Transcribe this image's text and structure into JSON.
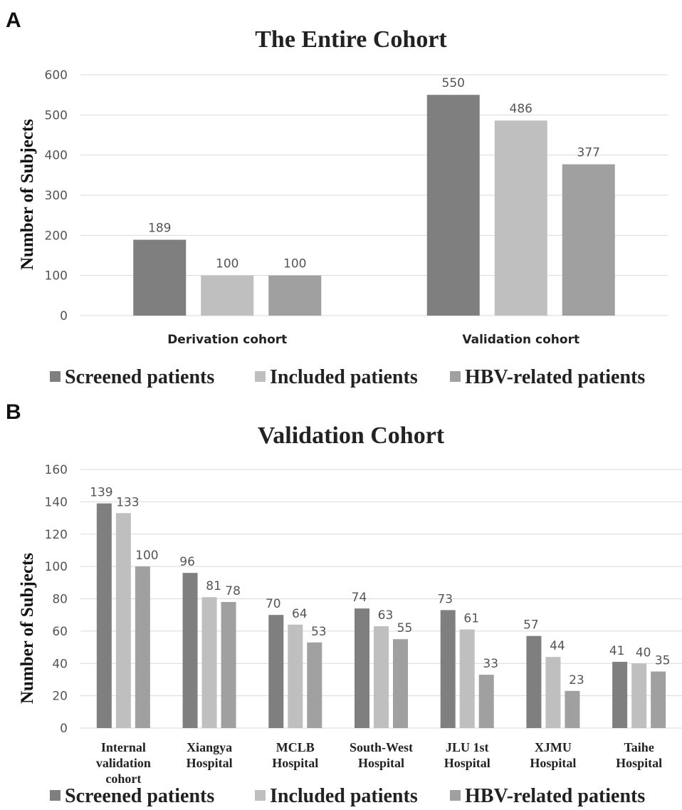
{
  "panels": [
    {
      "letter": "A",
      "chart_data": {
        "type": "bar",
        "title": "The Entire Cohort",
        "xlabel": "",
        "ylabel": "Number of Subjects",
        "categories": [
          "Derivation cohort",
          "Validation cohort"
        ],
        "series": [
          {
            "name": "Screened patients",
            "color": "#7f7f7f",
            "values": [
              189,
              550
            ]
          },
          {
            "name": "Included patients",
            "color": "#bfbfbf",
            "values": [
              100,
              486
            ]
          },
          {
            "name": "HBV-related patients",
            "color": "#a0a0a0",
            "values": [
              100,
              377
            ]
          }
        ],
        "ylim": [
          0,
          600
        ],
        "yticks": [
          0,
          100,
          200,
          300,
          400,
          500,
          600
        ],
        "grid": true,
        "legend": "bottom"
      }
    },
    {
      "letter": "B",
      "chart_data": {
        "type": "bar",
        "title": "Validation Cohort",
        "xlabel": "",
        "ylabel": "Number of Subjects",
        "categories": [
          [
            "Internal",
            "validation",
            "cohort"
          ],
          [
            "Xiangya",
            "Hospital"
          ],
          [
            "MCLB",
            "Hospital"
          ],
          [
            "South-West",
            "Hospital"
          ],
          [
            "JLU 1st",
            "Hospital"
          ],
          [
            "XJMU",
            "Hospital"
          ],
          [
            "Taihe",
            "Hospital"
          ]
        ],
        "series": [
          {
            "name": "Screened patients",
            "color": "#7f7f7f",
            "values": [
              139,
              96,
              70,
              74,
              73,
              57,
              41
            ]
          },
          {
            "name": "Included patients",
            "color": "#bfbfbf",
            "values": [
              133,
              81,
              64,
              63,
              61,
              44,
              40
            ]
          },
          {
            "name": "HBV-related patients",
            "color": "#a0a0a0",
            "values": [
              100,
              78,
              53,
              55,
              33,
              23,
              35
            ]
          }
        ],
        "ylim": [
          0,
          160
        ],
        "yticks": [
          0,
          20,
          40,
          60,
          80,
          100,
          120,
          140,
          160
        ],
        "grid": true,
        "legend": "bottom"
      }
    }
  ]
}
